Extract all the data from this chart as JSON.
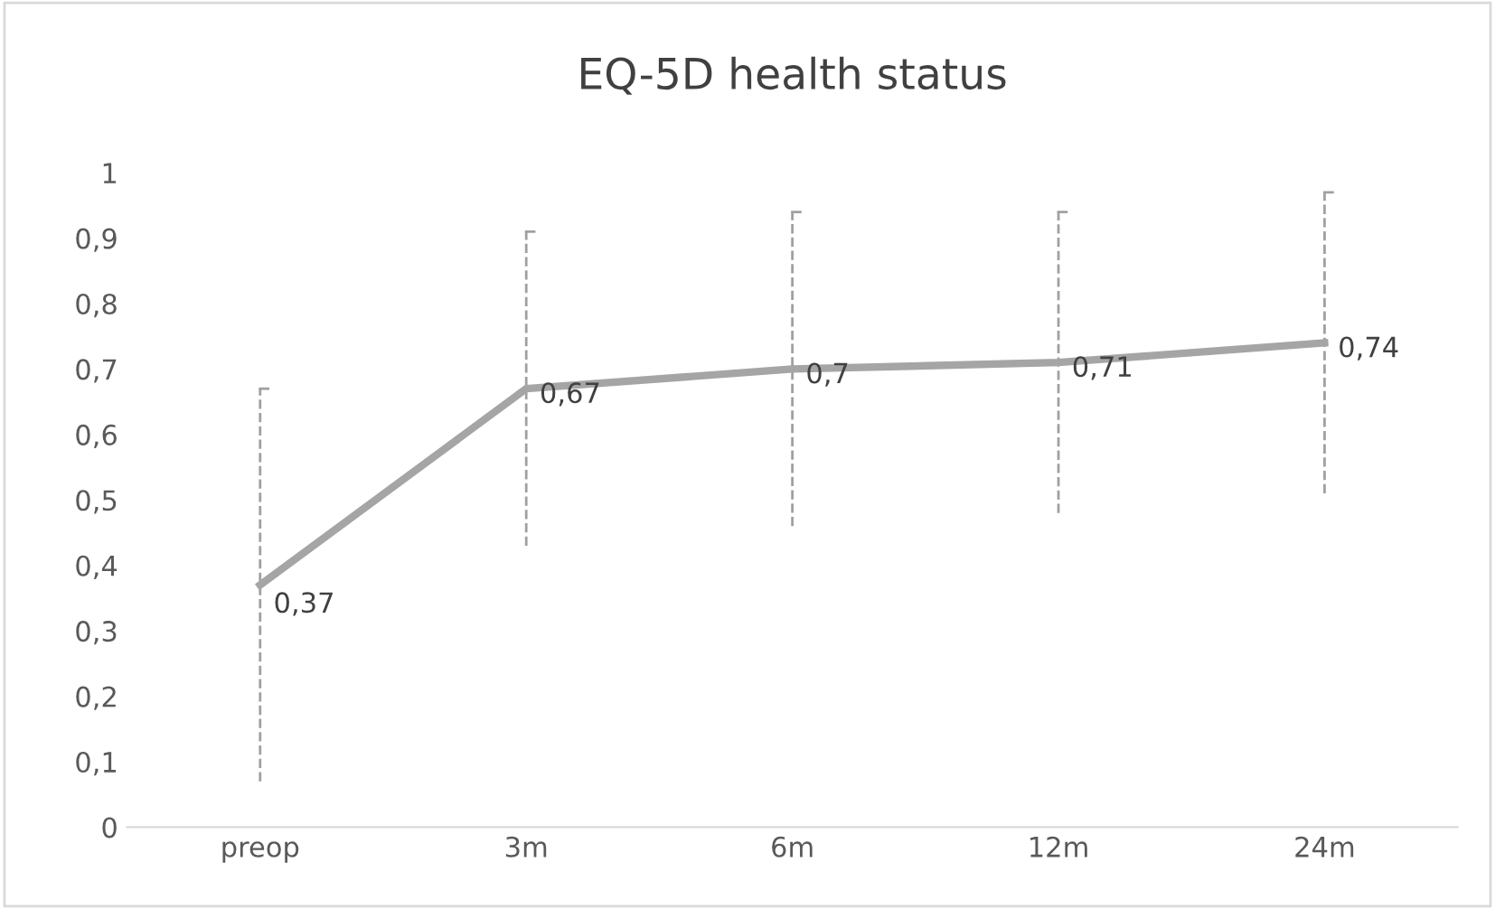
{
  "chart_data": {
    "type": "line",
    "title": "EQ-5D health status",
    "categories": [
      "preop",
      "3m",
      "6m",
      "12m",
      "24m"
    ],
    "series": [
      {
        "color": "#a5a5a5",
        "values": [
          0.37,
          0.67,
          0.7,
          0.71,
          0.74
        ],
        "errors": [
          0.3,
          0.24,
          0.24,
          0.23,
          0.23
        ],
        "value_labels": [
          "0,37",
          "0,67",
          "0,7",
          "0,71",
          "0,74"
        ]
      }
    ],
    "ylim": [
      0,
      1
    ],
    "yticks": [
      {
        "value": 0,
        "label": "0"
      },
      {
        "value": 0.1,
        "label": "0,1"
      },
      {
        "value": 0.2,
        "label": "0,2"
      },
      {
        "value": 0.3,
        "label": "0,3"
      },
      {
        "value": 0.4,
        "label": "0,4"
      },
      {
        "value": 0.5,
        "label": "0,5"
      },
      {
        "value": 0.6,
        "label": "0,6"
      },
      {
        "value": 0.7,
        "label": "0,7"
      },
      {
        "value": 0.8,
        "label": "0,8"
      },
      {
        "value": 0.9,
        "label": "0,9"
      },
      {
        "value": 1,
        "label": "1"
      }
    ],
    "grid": false,
    "marker": "none",
    "line_style": "solid"
  }
}
